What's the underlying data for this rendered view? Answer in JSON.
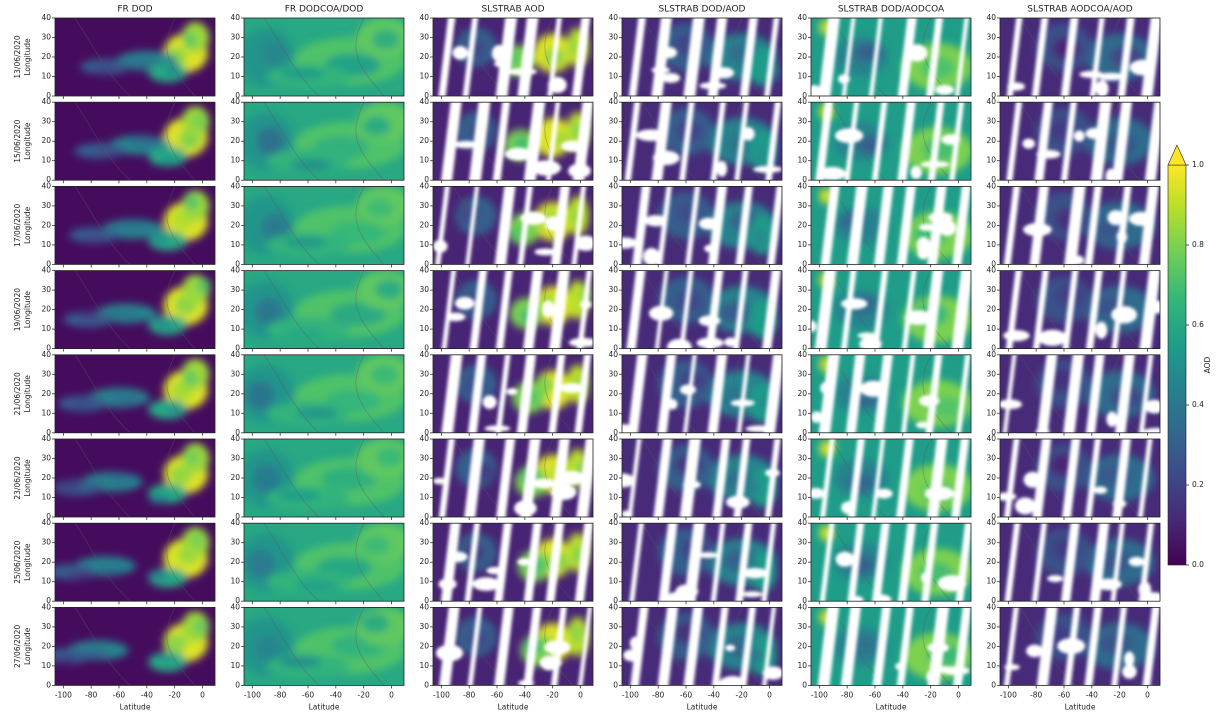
{
  "chart_data": {
    "type": "map-grid",
    "columns": [
      "FR DOD",
      "FR DODCOA/DOD",
      "SLSTRAB AOD",
      "SLSTRAB DOD/AOD",
      "SLSTRAB DOD/AODCOA",
      "SLSTRAB AODCOA/AOD"
    ],
    "rows": [
      "13/06/2020",
      "15/06/2020",
      "17/06/2020",
      "19/06/2020",
      "21/06/2020",
      "23/06/2020",
      "25/06/2020",
      "27/06/2020"
    ],
    "ylabel": "Longitude",
    "xlabel": "Latitude",
    "xlim": [
      -106,
      9
    ],
    "xticks": [
      -100,
      -80,
      -60,
      -40,
      -20,
      0
    ],
    "ylim": [
      0,
      40
    ],
    "yticks": [
      0,
      10,
      20,
      30,
      40
    ],
    "colormap": "viridis",
    "colorbar": {
      "label": "AOD",
      "lim": [
        0,
        1
      ],
      "ticks": [
        {
          "value": 0,
          "label": "0.0"
        },
        0.2,
        0.4,
        0.6,
        0.8,
        {
          "value": 1,
          "label": "1.0"
        }
      ],
      "extend": "max"
    }
  }
}
